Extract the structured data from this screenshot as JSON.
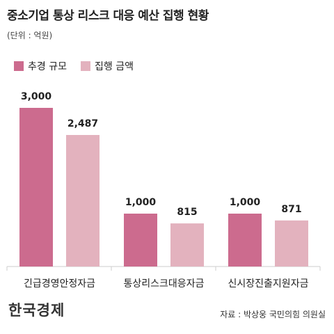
{
  "title": "중소기업 통상 리스크 대응 예산 집행 현황",
  "unit": "(단위 : 억원)",
  "logo": "한국경제",
  "source": "자료 : 박상웅 국민의힘 의원실",
  "colors": {
    "budget": "#cc6b8e",
    "executed": "#e3b2be",
    "axis": "#cccccc"
  },
  "chart_data": {
    "type": "bar",
    "categories": [
      "긴급경영안정자금",
      "통상리스크대응자금",
      "신시장진출지원자금"
    ],
    "series": [
      {
        "name": "추경 규모",
        "values": [
          3000,
          1000,
          1000
        ],
        "labels": [
          "3,000",
          "1,000",
          "1,000"
        ]
      },
      {
        "name": "집행 금액",
        "values": [
          2487,
          815,
          871
        ],
        "labels": [
          "2,487",
          "815",
          "871"
        ]
      }
    ],
    "ylim": [
      0,
      3000
    ],
    "legend": "top-left",
    "grid": false
  }
}
